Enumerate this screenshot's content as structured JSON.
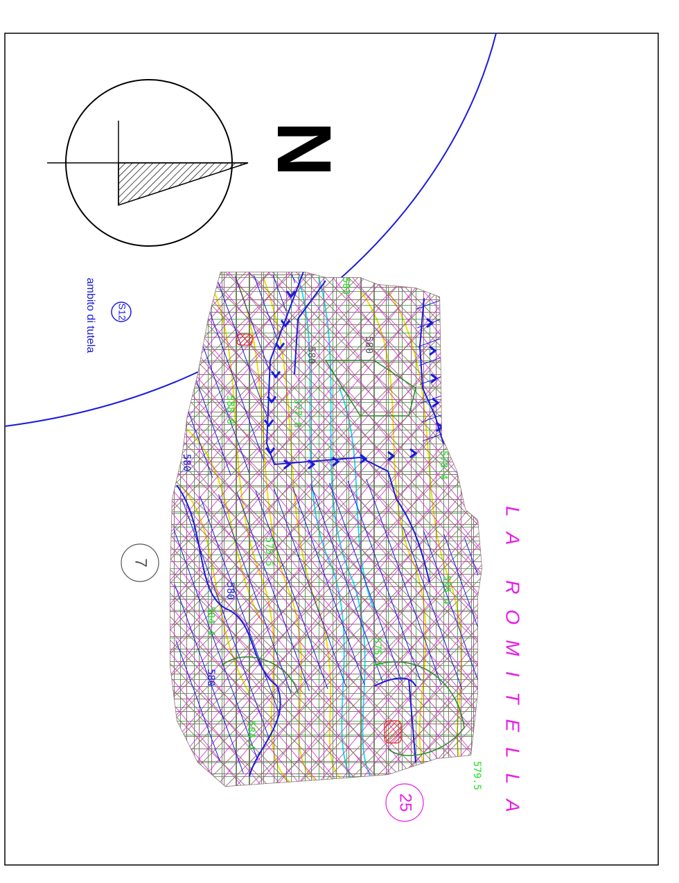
{
  "north_arrow": {
    "letter": "N"
  },
  "legend": {
    "zone_code": "S12",
    "zone_label": "ambito di tutela",
    "zone_color": "#1a1adc"
  },
  "place_name": "LA ROMITELLA",
  "parcels": [
    {
      "id": "7",
      "color": "#555555"
    },
    {
      "id": "25",
      "color": "#e81ce8"
    }
  ],
  "elevations": [
    "579.5",
    "585.5",
    "583",
    "588.8",
    "584.4",
    "584.4",
    "578.4",
    "580",
    "580",
    "580",
    "575.5",
    "575.5",
    "577.8",
    "585.4"
  ],
  "colors": {
    "boundary": "#000000",
    "hatch_gray": "#8a7070",
    "hatch_magenta": "#d020d0",
    "hatch_blue": "#1a1adc",
    "hatch_green": "#2e8b2e",
    "contour_yellow": "#f0e000",
    "contour_cyan": "#20e0f0",
    "spot_label": "#20e020",
    "building_red": "#e02020"
  }
}
